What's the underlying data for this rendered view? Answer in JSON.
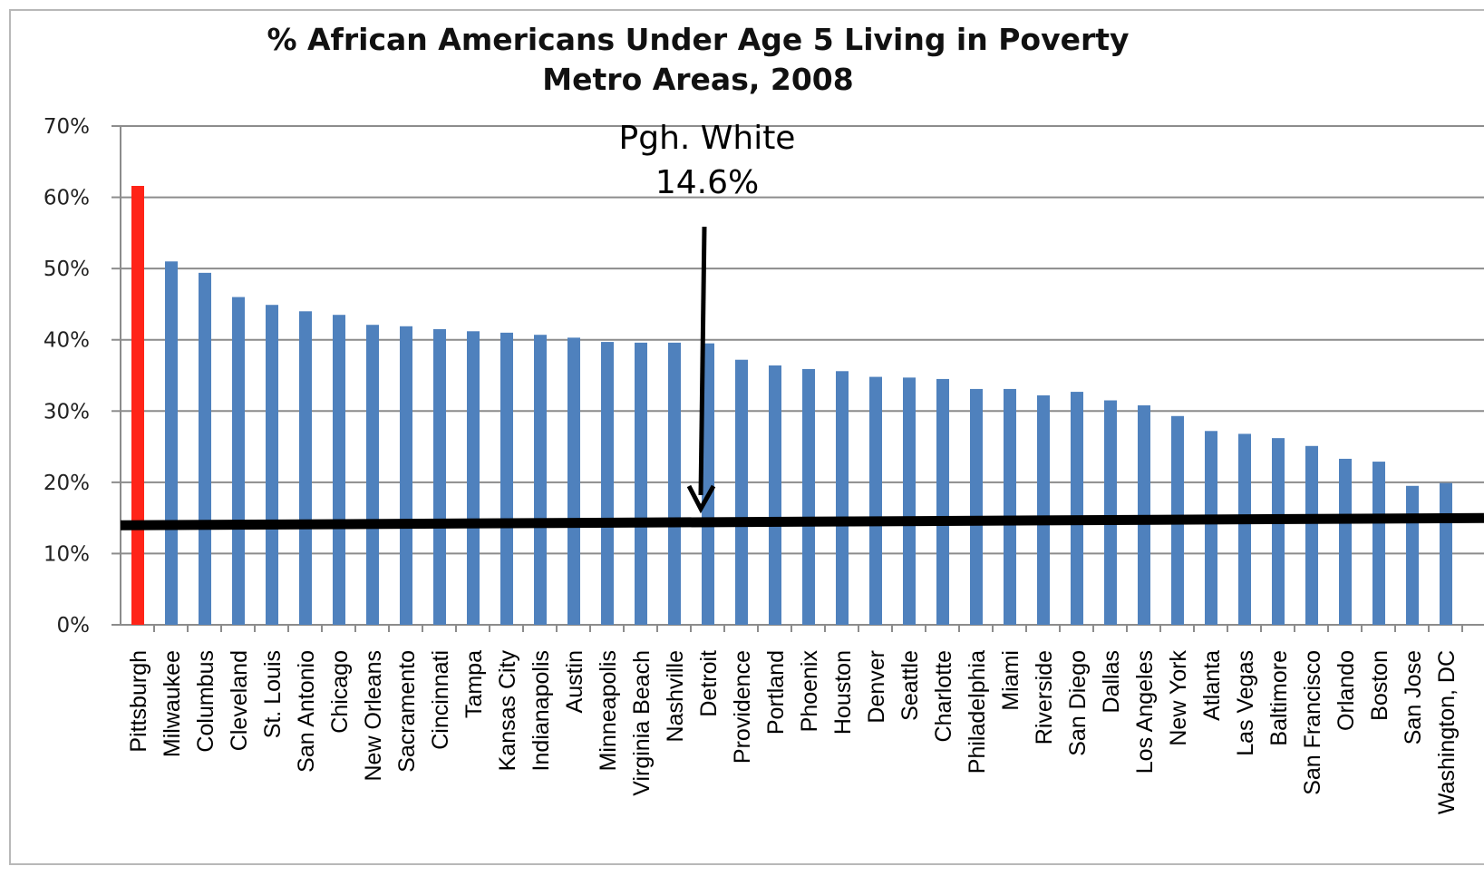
{
  "chart_data": {
    "type": "bar",
    "title": "% African Americans Under Age 5 Living in Poverty",
    "subtitle": "Metro Areas, 2008",
    "categories": [
      "Pittsburgh",
      "Milwaukee",
      "Columbus",
      "Cleveland",
      "St. Louis",
      "San Antonio",
      "Chicago",
      "New Orleans",
      "Sacramento",
      "Cincinnati",
      "Tampa",
      "Kansas City",
      "Indianapolis",
      "Austin",
      "Minneapolis",
      "Virginia Beach",
      "Nashville",
      "Detroit",
      "Providence",
      "Portland",
      "Phoenix",
      "Houston",
      "Denver",
      "Seattle",
      "Charlotte",
      "Philadelphia",
      "Miami",
      "Riverside",
      "San Diego",
      "Dallas",
      "Los Angeles",
      "New York",
      "Atlanta",
      "Las Vegas",
      "Baltimore",
      "San Francisco",
      "Orlando",
      "Boston",
      "San Jose",
      "Washington, DC"
    ],
    "values": [
      61.6,
      51.0,
      49.4,
      46.0,
      44.9,
      44.0,
      43.5,
      42.1,
      41.9,
      41.5,
      41.2,
      41.0,
      40.7,
      40.3,
      39.7,
      39.6,
      39.6,
      39.5,
      37.2,
      36.4,
      35.9,
      35.6,
      34.8,
      34.7,
      34.5,
      33.1,
      33.1,
      32.2,
      32.7,
      31.5,
      30.8,
      29.3,
      27.2,
      26.8,
      26.2,
      25.1,
      23.3,
      22.9,
      19.5,
      19.9
    ],
    "highlight_color": "#ff2418",
    "bar_color": "#4f81bd",
    "y_ticks": [
      "0%",
      "10%",
      "20%",
      "30%",
      "40%",
      "50%",
      "60%",
      "70%"
    ],
    "ylim": [
      0,
      70
    ],
    "grid": true,
    "reference_line": {
      "value": 14.6,
      "label": "Pgh. White",
      "value_label": "14.6%"
    }
  }
}
